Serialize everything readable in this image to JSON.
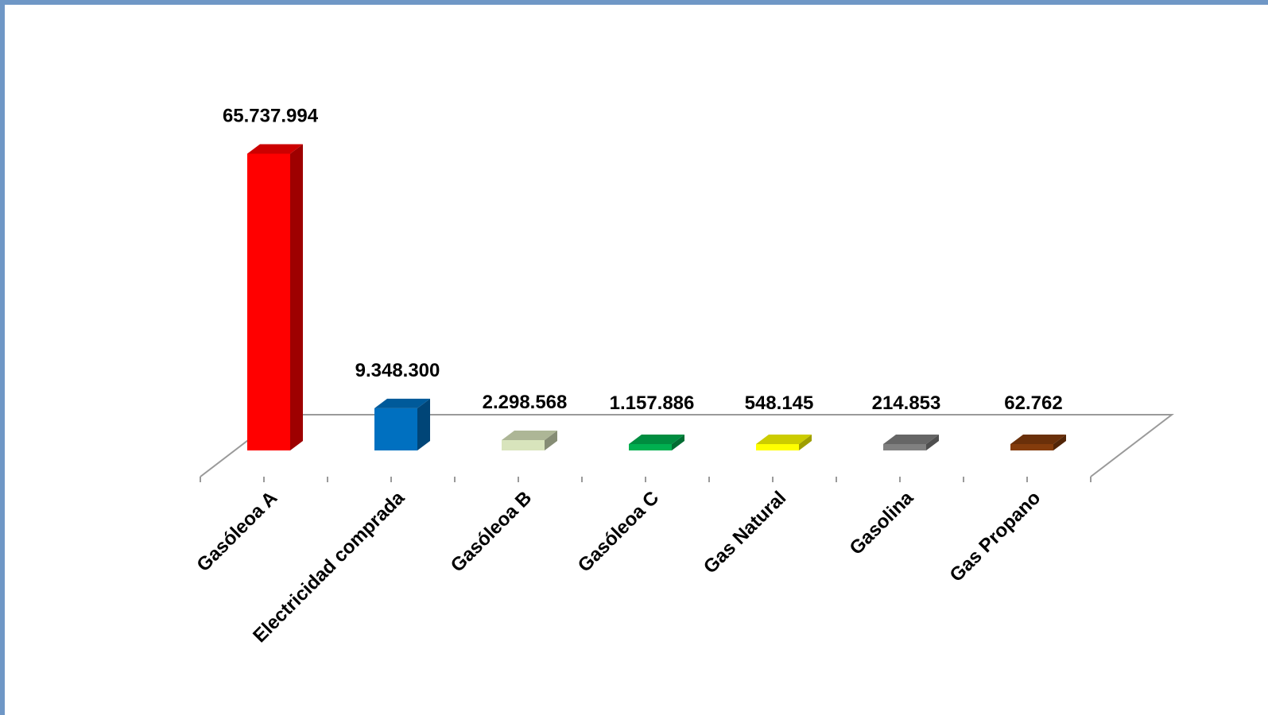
{
  "chart_data": {
    "type": "bar",
    "three_d": true,
    "categories": [
      "Gasóleoa A",
      "Electricidad comprada",
      "Gasóleoa B",
      "Gasóleoa C",
      "Gas Natural",
      "Gasolina",
      "Gas Propano"
    ],
    "values": [
      65737994,
      9348300,
      2298568,
      1157886,
      548145,
      214853,
      62762
    ],
    "data_labels": [
      "65.737.994",
      "9.348.300",
      "2.298.568",
      "1.157.886",
      "548.145",
      "214.853",
      "62.762"
    ],
    "colors": [
      "#ff0000",
      "#0070c0",
      "#d8e4bc",
      "#00b050",
      "#ffff00",
      "#808080",
      "#843c0c"
    ],
    "title": "",
    "xlabel": "",
    "ylabel": "",
    "ylim": [
      0,
      66000000
    ],
    "grid": false,
    "legend": "none"
  }
}
